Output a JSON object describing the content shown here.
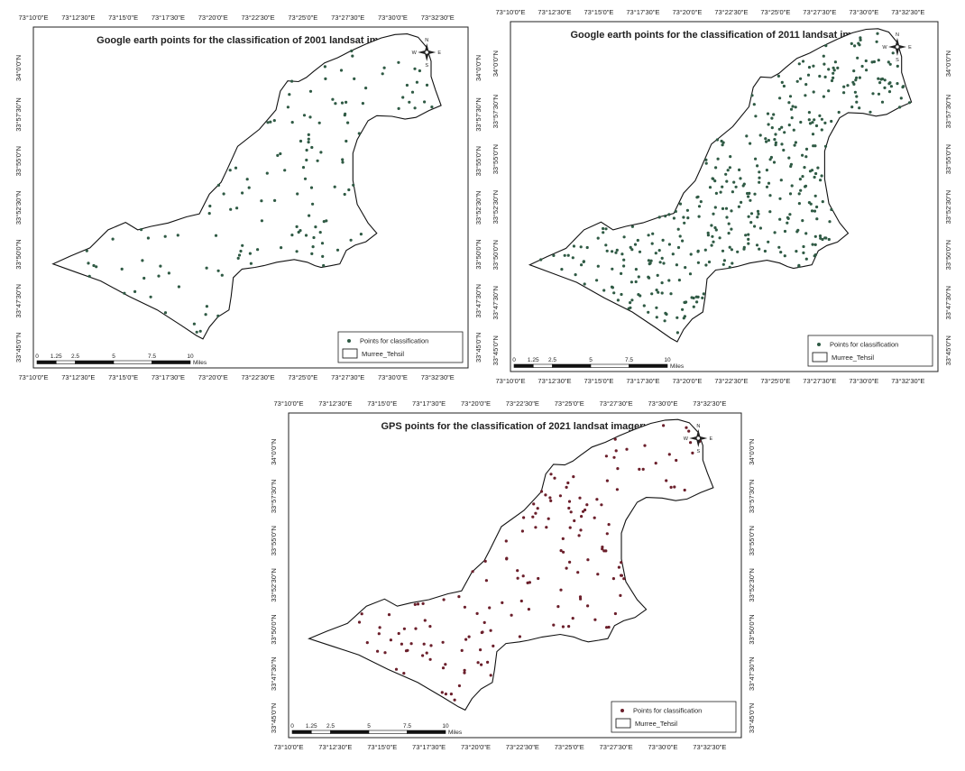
{
  "maps": [
    {
      "id": "map-2001",
      "title": "Google earth points for the classification of 2001 landsat imagery",
      "lon_labels": [
        "73°10'0\"E",
        "73°12'30\"E",
        "73°15'0\"E",
        "73°17'30\"E",
        "73°20'0\"E",
        "73°22'30\"E",
        "73°25'0\"E",
        "73°27'30\"E",
        "73°30'0\"E",
        "73°32'30\"E"
      ],
      "lat_labels": [
        "34°0'0\"N",
        "33°57'30\"N",
        "33°55'0\"N",
        "33°52'30\"N",
        "33°50'0\"N",
        "33°47'30\"N",
        "33°45'0\"N"
      ],
      "legend": {
        "points_label": "Points for classification",
        "boundary_label": "Murree_Tehsil"
      },
      "scale": {
        "labels": [
          "0",
          "1.25",
          "2.5",
          "5",
          "7.5",
          "10"
        ],
        "unit": "Miles"
      },
      "compass": {
        "n": "N",
        "s": "S",
        "e": "E",
        "w": "W"
      },
      "point_color": "#2f5a44"
    },
    {
      "id": "map-2011",
      "title": "Google earth points for the classification of 2011 landsat imagery",
      "lon_labels": [
        "73°10'0\"E",
        "73°12'30\"E",
        "73°15'0\"E",
        "73°17'30\"E",
        "73°20'0\"E",
        "73°22'30\"E",
        "73°25'0\"E",
        "73°27'30\"E",
        "73°30'0\"E",
        "73°32'30\"E"
      ],
      "lat_labels": [
        "34°0'0\"N",
        "33°57'30\"N",
        "33°55'0\"N",
        "33°52'30\"N",
        "33°50'0\"N",
        "33°47'30\"N",
        "33°45'0\"N"
      ],
      "legend": {
        "points_label": "Points for classification",
        "boundary_label": "Murree_Tehsil"
      },
      "scale": {
        "labels": [
          "0",
          "1.25",
          "2.5",
          "5",
          "7.5",
          "10"
        ],
        "unit": "Miles"
      },
      "compass": {
        "n": "N",
        "s": "S",
        "e": "E",
        "w": "W"
      },
      "point_color": "#2f5a44"
    },
    {
      "id": "map-2021",
      "title": "GPS points for  the classification of 2021 landsat imagery",
      "lon_labels": [
        "73°10'0\"E",
        "73°12'30\"E",
        "73°15'0\"E",
        "73°17'30\"E",
        "73°20'0\"E",
        "73°22'30\"E",
        "73°25'0\"E",
        "73°27'30\"E",
        "73°30'0\"E",
        "73°32'30\"E"
      ],
      "lat_labels": [
        "34°0'0\"N",
        "33°57'30\"N",
        "33°55'0\"N",
        "33°52'30\"N",
        "33°50'0\"N",
        "33°47'30\"N",
        "33°45'0\"N"
      ],
      "legend": {
        "points_label": "Points for classification",
        "boundary_label": "Murree_Tehsil"
      },
      "scale": {
        "labels": [
          "0",
          "1.25",
          "2.5",
          "5",
          "7.5",
          "10"
        ],
        "unit": "Miles"
      },
      "compass": {
        "n": "N",
        "s": "S",
        "e": "E",
        "w": "W"
      },
      "point_color": "#6b1f2b"
    }
  ]
}
